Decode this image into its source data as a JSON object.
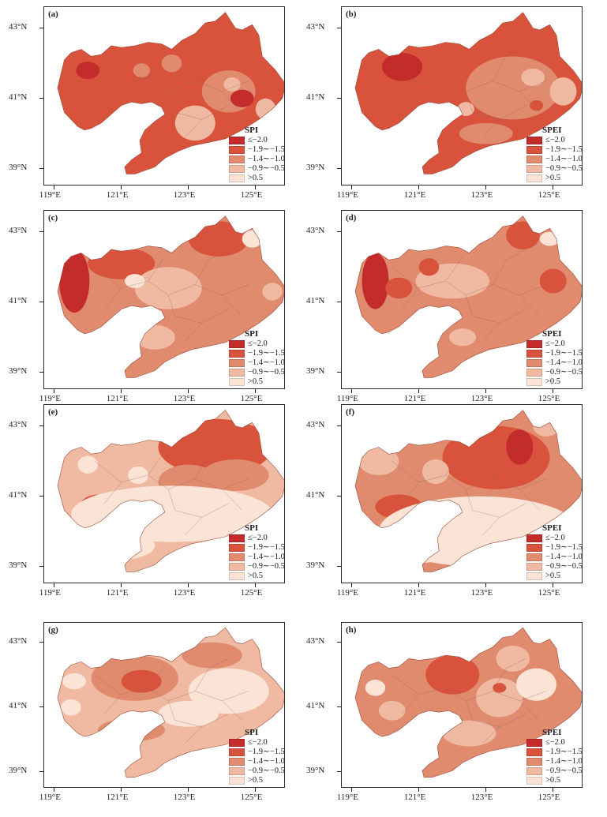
{
  "legend_colors": [
    "#c42b2b",
    "#d9523c",
    "#e08a6e",
    "#efb9a2",
    "#fbe3d5"
  ],
  "legend_labels": [
    "≤−2.0",
    "−1.9∼−1.5",
    "−1.4∼−1.0",
    "−0.9∼−0.5",
    ">0.5"
  ],
  "x_ticks": [
    "119°E",
    "121°E",
    "123°E",
    "125°E"
  ],
  "y_ticks": [
    "43°N",
    "41°N",
    "39°N"
  ],
  "panels": [
    {
      "label": "(a)",
      "index": "SPI",
      "base_class": 1,
      "blobs": [
        {
          "lon": 120.0,
          "lat": 41.8,
          "rx": 0.35,
          "ry": 0.25,
          "cls": 0
        },
        {
          "lon": 122.5,
          "lat": 42.0,
          "rx": 0.3,
          "ry": 0.25,
          "cls": 2
        },
        {
          "lon": 124.2,
          "lat": 41.2,
          "rx": 0.8,
          "ry": 0.6,
          "cls": 2
        },
        {
          "lon": 124.6,
          "lat": 41.0,
          "rx": 0.35,
          "ry": 0.25,
          "cls": 0
        },
        {
          "lon": 123.2,
          "lat": 40.3,
          "rx": 0.6,
          "ry": 0.5,
          "cls": 3
        },
        {
          "lon": 124.3,
          "lat": 41.4,
          "rx": 0.25,
          "ry": 0.2,
          "cls": 3
        },
        {
          "lon": 125.3,
          "lat": 40.7,
          "rx": 0.3,
          "ry": 0.3,
          "cls": 3
        },
        {
          "lon": 121.6,
          "lat": 41.8,
          "rx": 0.25,
          "ry": 0.2,
          "cls": 2
        }
      ]
    },
    {
      "label": "(b)",
      "index": "SPEI",
      "base_class": 1,
      "blobs": [
        {
          "lon": 123.8,
          "lat": 41.3,
          "rx": 1.4,
          "ry": 0.9,
          "cls": 2
        },
        {
          "lon": 124.4,
          "lat": 41.6,
          "rx": 0.35,
          "ry": 0.25,
          "cls": 3
        },
        {
          "lon": 125.3,
          "lat": 41.2,
          "rx": 0.4,
          "ry": 0.4,
          "cls": 3
        },
        {
          "lon": 123.0,
          "lat": 40.0,
          "rx": 0.8,
          "ry": 0.3,
          "cls": 2
        },
        {
          "lon": 122.4,
          "lat": 40.7,
          "rx": 0.25,
          "ry": 0.2,
          "cls": 3
        },
        {
          "lon": 124.5,
          "lat": 40.8,
          "rx": 0.2,
          "ry": 0.15,
          "cls": 1
        },
        {
          "lon": 120.5,
          "lat": 41.9,
          "rx": 0.6,
          "ry": 0.4,
          "cls": 0
        }
      ]
    },
    {
      "label": "(c)",
      "index": "SPI",
      "base_class": 2,
      "blobs": [
        {
          "lon": 119.6,
          "lat": 41.6,
          "rx": 0.45,
          "ry": 0.9,
          "cls": 0
        },
        {
          "lon": 121.0,
          "lat": 42.1,
          "rx": 1.0,
          "ry": 0.45,
          "cls": 1
        },
        {
          "lon": 123.9,
          "lat": 42.8,
          "rx": 0.9,
          "ry": 0.5,
          "cls": 1
        },
        {
          "lon": 122.4,
          "lat": 41.4,
          "rx": 1.0,
          "ry": 0.6,
          "cls": 3
        },
        {
          "lon": 122.0,
          "lat": 40.0,
          "rx": 0.6,
          "ry": 0.35,
          "cls": 3
        },
        {
          "lon": 121.4,
          "lat": 41.6,
          "rx": 0.3,
          "ry": 0.2,
          "cls": 4
        },
        {
          "lon": 124.9,
          "lat": 42.8,
          "rx": 0.3,
          "ry": 0.25,
          "cls": 4
        },
        {
          "lon": 125.5,
          "lat": 41.3,
          "rx": 0.3,
          "ry": 0.25,
          "cls": 3
        }
      ]
    },
    {
      "label": "(d)",
      "index": "SPEI",
      "base_class": 2,
      "blobs": [
        {
          "lon": 119.7,
          "lat": 41.6,
          "rx": 0.4,
          "ry": 0.8,
          "cls": 0
        },
        {
          "lon": 124.1,
          "lat": 42.9,
          "rx": 0.5,
          "ry": 0.4,
          "cls": 1
        },
        {
          "lon": 125.0,
          "lat": 41.6,
          "rx": 0.4,
          "ry": 0.35,
          "cls": 1
        },
        {
          "lon": 122.0,
          "lat": 41.6,
          "rx": 1.1,
          "ry": 0.5,
          "cls": 3
        },
        {
          "lon": 122.3,
          "lat": 40.0,
          "rx": 0.4,
          "ry": 0.25,
          "cls": 3
        },
        {
          "lon": 121.3,
          "lat": 42.0,
          "rx": 0.3,
          "ry": 0.25,
          "cls": 1
        },
        {
          "lon": 120.4,
          "lat": 41.4,
          "rx": 0.4,
          "ry": 0.3,
          "cls": 1
        },
        {
          "lon": 124.9,
          "lat": 42.8,
          "rx": 0.3,
          "ry": 0.2,
          "cls": 4
        }
      ]
    },
    {
      "label": "(e)",
      "index": "SPI",
      "base_class": 3,
      "blobs": [
        {
          "lon": 123.8,
          "lat": 42.4,
          "rx": 1.7,
          "ry": 0.8,
          "cls": 1
        },
        {
          "lon": 124.4,
          "lat": 41.6,
          "rx": 1.0,
          "ry": 0.45,
          "cls": 2
        },
        {
          "lon": 123.0,
          "lat": 41.4,
          "rx": 0.9,
          "ry": 0.5,
          "cls": 2
        },
        {
          "lon": 120.3,
          "lat": 40.6,
          "rx": 0.6,
          "ry": 0.45,
          "cls": 1
        },
        {
          "lon": 122.5,
          "lat": 40.5,
          "rx": 3.0,
          "ry": 0.8,
          "cls": 4
        },
        {
          "lon": 121.0,
          "lat": 39.6,
          "rx": 1.0,
          "ry": 0.4,
          "cls": 4
        },
        {
          "lon": 121.5,
          "lat": 41.6,
          "rx": 0.3,
          "ry": 0.25,
          "cls": 4
        },
        {
          "lon": 120.0,
          "lat": 41.9,
          "rx": 0.3,
          "ry": 0.25,
          "cls": 4
        }
      ]
    },
    {
      "label": "(f)",
      "index": "SPEI",
      "base_class": 2,
      "blobs": [
        {
          "lon": 123.3,
          "lat": 42.1,
          "rx": 1.6,
          "ry": 0.9,
          "cls": 1
        },
        {
          "lon": 124.0,
          "lat": 42.4,
          "rx": 0.4,
          "ry": 0.5,
          "cls": 0
        },
        {
          "lon": 120.4,
          "lat": 40.7,
          "rx": 0.7,
          "ry": 0.35,
          "cls": 1
        },
        {
          "lon": 122.8,
          "lat": 40.0,
          "rx": 3.0,
          "ry": 1.0,
          "cls": 4
        },
        {
          "lon": 121.0,
          "lat": 39.5,
          "rx": 1.0,
          "ry": 0.4,
          "cls": 4
        },
        {
          "lon": 121.5,
          "lat": 41.7,
          "rx": 0.4,
          "ry": 0.35,
          "cls": 3
        },
        {
          "lon": 119.8,
          "lat": 42.0,
          "rx": 0.6,
          "ry": 0.4,
          "cls": 3
        },
        {
          "lon": 124.8,
          "lat": 43.0,
          "rx": 0.4,
          "ry": 0.3,
          "cls": 3
        }
      ]
    },
    {
      "label": "(g)",
      "index": "SPI",
      "base_class": 3,
      "blobs": [
        {
          "lon": 121.4,
          "lat": 41.9,
          "rx": 1.3,
          "ry": 0.7,
          "cls": 2
        },
        {
          "lon": 121.6,
          "lat": 41.8,
          "rx": 0.6,
          "ry": 0.35,
          "cls": 1
        },
        {
          "lon": 123.7,
          "lat": 42.6,
          "rx": 0.9,
          "ry": 0.4,
          "cls": 2
        },
        {
          "lon": 124.2,
          "lat": 41.5,
          "rx": 1.2,
          "ry": 0.7,
          "cls": 4
        },
        {
          "lon": 121.3,
          "lat": 40.3,
          "rx": 1.0,
          "ry": 0.35,
          "cls": 2
        },
        {
          "lon": 119.6,
          "lat": 41.8,
          "rx": 0.35,
          "ry": 0.25,
          "cls": 4
        },
        {
          "lon": 119.5,
          "lat": 41.0,
          "rx": 0.3,
          "ry": 0.25,
          "cls": 4
        },
        {
          "lon": 123.0,
          "lat": 40.8,
          "rx": 0.9,
          "ry": 0.4,
          "cls": 4
        }
      ]
    },
    {
      "label": "(h)",
      "index": "SPEI",
      "base_class": 2,
      "blobs": [
        {
          "lon": 122.0,
          "lat": 42.0,
          "rx": 0.8,
          "ry": 0.6,
          "cls": 1
        },
        {
          "lon": 123.4,
          "lat": 41.3,
          "rx": 0.7,
          "ry": 0.6,
          "cls": 3
        },
        {
          "lon": 124.5,
          "lat": 41.7,
          "rx": 0.6,
          "ry": 0.5,
          "cls": 4
        },
        {
          "lon": 122.5,
          "lat": 40.2,
          "rx": 0.8,
          "ry": 0.4,
          "cls": 3
        },
        {
          "lon": 119.7,
          "lat": 41.6,
          "rx": 0.3,
          "ry": 0.25,
          "cls": 4
        },
        {
          "lon": 120.2,
          "lat": 40.9,
          "rx": 0.4,
          "ry": 0.3,
          "cls": 3
        },
        {
          "lon": 123.8,
          "lat": 42.5,
          "rx": 0.5,
          "ry": 0.4,
          "cls": 3
        },
        {
          "lon": 123.4,
          "lat": 41.6,
          "rx": 0.2,
          "ry": 0.15,
          "cls": 1
        }
      ]
    }
  ]
}
